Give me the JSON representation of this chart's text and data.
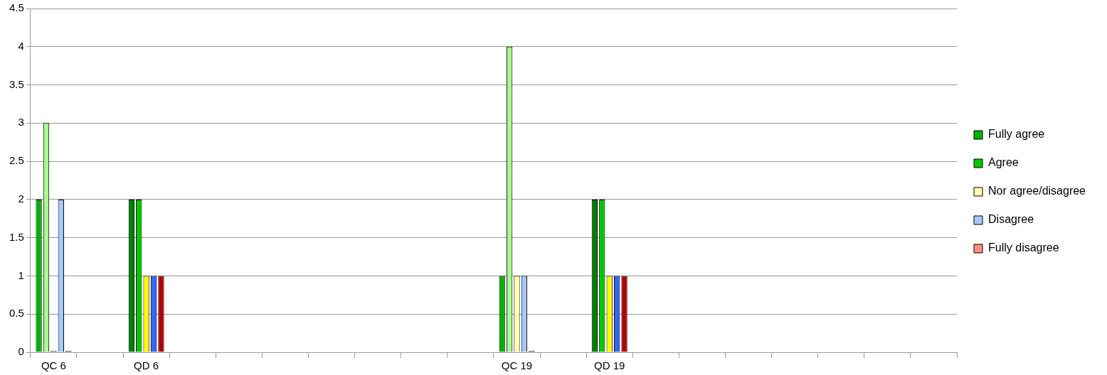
{
  "chart_data": {
    "type": "bar",
    "categories": [
      "QC 6",
      null,
      "QD 6",
      null,
      null,
      null,
      null,
      null,
      null,
      null,
      "QC 19",
      null,
      "QD 19",
      null,
      null,
      null,
      null,
      null,
      null,
      null
    ],
    "series": [
      {
        "name": "Fully agree",
        "color": "#00b000",
        "colors": [
          "#00b000",
          null,
          "#008000",
          null,
          null,
          null,
          null,
          null,
          null,
          null,
          "#00b000",
          null,
          "#008000",
          null,
          null,
          null,
          null,
          null,
          null,
          null
        ],
        "values": [
          2,
          null,
          2,
          null,
          null,
          null,
          null,
          null,
          null,
          null,
          1,
          null,
          2,
          null,
          null,
          null,
          null,
          null,
          null,
          null
        ]
      },
      {
        "name": "Agree",
        "color": "#00c800",
        "colors": [
          "#a8ff90",
          null,
          "#00c800",
          null,
          null,
          null,
          null,
          null,
          null,
          null,
          "#a8ff90",
          null,
          "#00c800",
          null,
          null,
          null,
          null,
          null,
          null,
          null
        ],
        "values": [
          3,
          null,
          2,
          null,
          null,
          null,
          null,
          null,
          null,
          null,
          4,
          null,
          2,
          null,
          null,
          null,
          null,
          null,
          null,
          null
        ]
      },
      {
        "name": "Nor agree/disagree",
        "color": "#ffffb0",
        "colors": [
          "#ffffb0",
          null,
          "#ffff00",
          null,
          null,
          null,
          null,
          null,
          null,
          null,
          "#ffffb0",
          null,
          "#ffff00",
          null,
          null,
          null,
          null,
          null,
          null,
          null
        ],
        "values": [
          0,
          null,
          1,
          null,
          null,
          null,
          null,
          null,
          null,
          null,
          1,
          null,
          1,
          null,
          null,
          null,
          null,
          null,
          null,
          null
        ]
      },
      {
        "name": "Disagree",
        "color": "#a8c8ff",
        "colors": [
          "#a8c8ff",
          null,
          "#3366ff",
          null,
          null,
          null,
          null,
          null,
          null,
          null,
          "#a8c8ff",
          null,
          "#3366ff",
          null,
          null,
          null,
          null,
          null,
          null,
          null
        ],
        "values": [
          2,
          null,
          1,
          null,
          null,
          null,
          null,
          null,
          null,
          null,
          1,
          null,
          1,
          null,
          null,
          null,
          null,
          null,
          null,
          null
        ]
      },
      {
        "name": "Fully disagree",
        "color": "#ff9080",
        "colors": [
          "#ff9080",
          null,
          "#b30000",
          null,
          null,
          null,
          null,
          null,
          null,
          null,
          "#ff9080",
          null,
          "#b30000",
          null,
          null,
          null,
          null,
          null,
          null,
          null
        ],
        "values": [
          0,
          null,
          1,
          null,
          null,
          null,
          null,
          null,
          null,
          null,
          0,
          null,
          1,
          null,
          null,
          null,
          null,
          null,
          null,
          null
        ]
      }
    ],
    "ylim": [
      0,
      4.5
    ],
    "yticks": [
      0,
      0.5,
      1,
      1.5,
      2,
      2.5,
      3,
      3.5,
      4,
      4.5
    ],
    "grid": "y",
    "legend": "right"
  }
}
